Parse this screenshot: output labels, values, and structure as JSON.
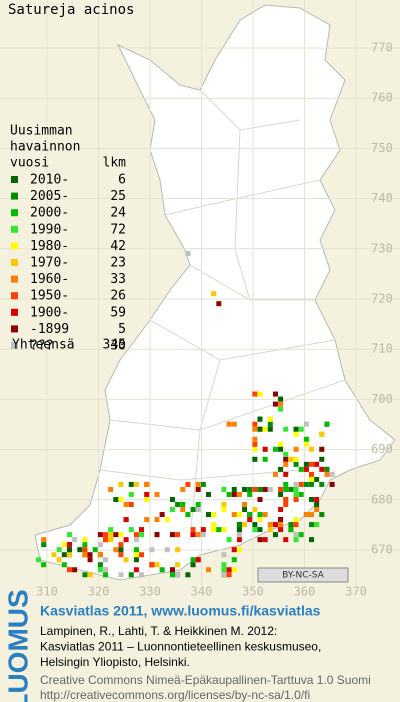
{
  "title": "Satureja acinos",
  "legend": {
    "heading": [
      "Uusimman",
      "havainnon",
      "vuosi"
    ],
    "count_heading": "lkm",
    "entries": [
      {
        "label": "2010-",
        "count": 6,
        "color": "#006400"
      },
      {
        "label": "2005-",
        "count": 25,
        "color": "#008c00"
      },
      {
        "label": "2000-",
        "count": 24,
        "color": "#00bb00"
      },
      {
        "label": "1990-",
        "count": 72,
        "color": "#33e633"
      },
      {
        "label": "1980-",
        "count": 42,
        "color": "#ffff00"
      },
      {
        "label": "1970-",
        "count": 23,
        "color": "#ffc800"
      },
      {
        "label": "1960-",
        "count": 33,
        "color": "#ff8000"
      },
      {
        "label": "1950-",
        "count": 26,
        "color": "#ff4000"
      },
      {
        "label": "1900-",
        "count": 59,
        "color": "#d80000"
      },
      {
        "label": "-1899",
        "count": 5,
        "color": "#8c0000"
      },
      {
        "label": "???",
        "count": 30,
        "color": "#c0c0c0"
      }
    ],
    "total_label": "Yhteensä",
    "total": 345
  },
  "grid": {
    "north": [
      770,
      760,
      750,
      740,
      730,
      720,
      710,
      700,
      690,
      680,
      670
    ],
    "east": [
      310,
      320,
      330,
      340,
      350,
      360,
      370
    ]
  },
  "badge": "BY-NC-SA",
  "footer": {
    "brand": "LUOMUS",
    "headline": "Kasviatlas 2011, www.luomus.fi/kasviatlas",
    "citation": [
      "Lampinen, R., Lahti, T. & Heikkinen M. 2012:",
      "Kasviatlas 2011 – Luonnontieteellinen keskusmuseo,",
      "Helsingin Yliopisto, Helsinki."
    ],
    "license": [
      "Creative Commons Nimeä-Epäkaupallinen-Tarttuva 1.0 Suomi",
      "http://creativecommons.org/licenses/by-nc-sa/1.0/fi"
    ]
  }
}
